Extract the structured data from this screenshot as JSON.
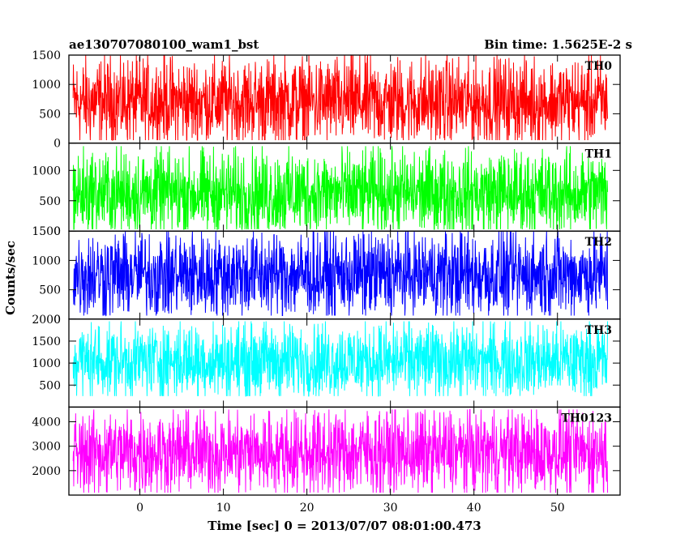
{
  "chart_data": {
    "type": "line",
    "title": "ae130707080100_wam1_bst",
    "bin_time_label": "Bin time: 1.5625E-2 s",
    "xlabel": "Time [sec] 0 = 2013/07/07 08:01:00.473",
    "ylabel": "Counts/sec",
    "xlim": [
      -8.5,
      57.5
    ],
    "data_xrange": [
      -8.0,
      56.0
    ],
    "xticks": [
      0,
      10,
      20,
      30,
      40,
      50
    ],
    "grid": false,
    "series": [
      {
        "name": "TH0",
        "color": "#ff0000",
        "ylim": [
          0,
          1500
        ],
        "yticks": [
          0,
          500,
          1000,
          1500
        ],
        "mean": 700,
        "low": 50,
        "high": 1500
      },
      {
        "name": "TH1",
        "color": "#00ff00",
        "ylim": [
          0,
          1450
        ],
        "yticks": [
          0,
          500,
          1000
        ],
        "mean": 620,
        "low": 30,
        "high": 1400
      },
      {
        "name": "TH2",
        "color": "#0000ff",
        "ylim": [
          0,
          1500
        ],
        "yticks": [
          0,
          500,
          1000,
          1500
        ],
        "mean": 760,
        "low": 60,
        "high": 1500
      },
      {
        "name": "TH3",
        "color": "#00ffff",
        "ylim": [
          0,
          2000
        ],
        "yticks": [
          500,
          1000,
          1500,
          2000
        ],
        "mean": 1050,
        "low": 250,
        "high": 1950
      },
      {
        "name": "TH0123",
        "color": "#ff00ff",
        "ylim": [
          1000,
          4600
        ],
        "yticks": [
          2000,
          3000,
          4000
        ],
        "mean": 2750,
        "low": 1100,
        "high": 4500
      }
    ]
  }
}
